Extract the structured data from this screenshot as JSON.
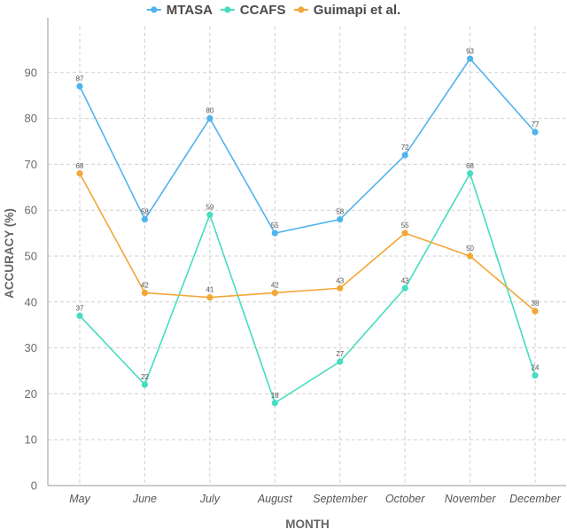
{
  "chart_data": {
    "type": "line",
    "title": "",
    "xlabel": "MONTH",
    "ylabel": "ACCURACY (%)",
    "ylim": [
      0,
      100
    ],
    "yticks": [
      0,
      10,
      20,
      30,
      40,
      50,
      60,
      70,
      80,
      90
    ],
    "grid": true,
    "legend_position": "top-center",
    "categories": [
      "May",
      "June",
      "July",
      "August",
      "September",
      "October",
      "November",
      "December"
    ],
    "series": [
      {
        "name": "MTASA",
        "color": "#4fb3ee",
        "values": [
          87,
          58,
          80,
          55,
          58,
          72,
          93,
          77
        ],
        "labels": [
          "87",
          "58",
          "80",
          "55",
          "58",
          "72",
          "93",
          "77"
        ]
      },
      {
        "name": "CCAFS",
        "color": "#45dcc0",
        "values": [
          37,
          22,
          59,
          18,
          27,
          43,
          68,
          24
        ],
        "labels": [
          "37",
          "22",
          "59",
          "18",
          "27",
          "43",
          "68",
          "24"
        ]
      },
      {
        "name": "Guimapi et al.",
        "color": "#f2a737",
        "values": [
          68,
          42,
          41,
          42,
          43,
          55,
          50,
          38
        ],
        "labels": [
          "68",
          "42",
          "41",
          "42",
          "43",
          "55",
          "50",
          "38"
        ]
      }
    ]
  }
}
